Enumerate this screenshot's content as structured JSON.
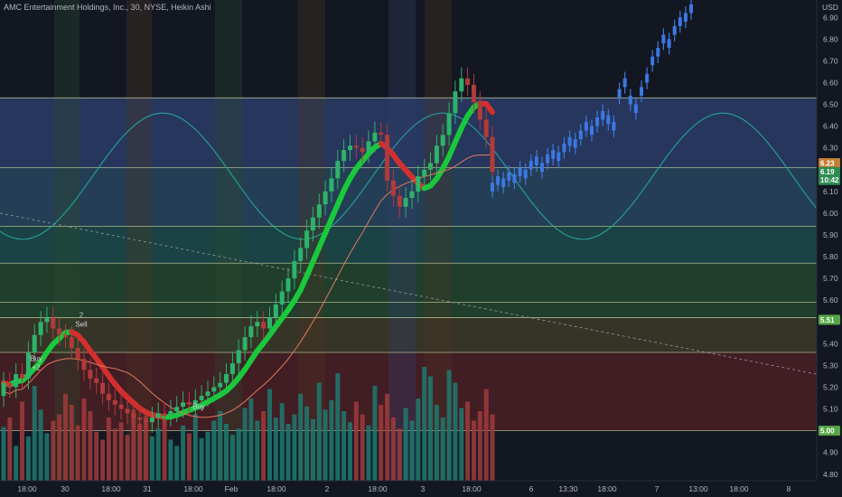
{
  "header": {
    "title": "AMC Entertainment Holdings, Inc., 30, NYSE, Heikin Ashi",
    "currency": "USD"
  },
  "colors": {
    "background": "#131722",
    "up": "#2db36a",
    "down": "#b33a3a",
    "forecast": "#3d78e3",
    "ribbon_up": "#19c93b",
    "ribbon_down": "#d32f2f",
    "sine": "#26a69a",
    "level_line": "#c9d7a6",
    "badge_price": "#c47f33",
    "badge_last": "#2e8b4f",
    "badge_level": "#56a646"
  },
  "chart_data": {
    "type": "candlestick",
    "symbol": "AMC Entertainment Holdings, Inc.",
    "interval": "30",
    "exchange": "NYSE",
    "style": "Heikin Ashi",
    "y_axis": {
      "unit": "USD",
      "ylim": [
        4.77,
        6.98
      ],
      "ticks": [
        "4.80",
        "4.90",
        "5.00",
        "5.10",
        "5.20",
        "5.30",
        "5.40",
        "5.50",
        "5.60",
        "5.70",
        "5.80",
        "5.90",
        "6.00",
        "6.10",
        "6.20",
        "6.30",
        "6.40",
        "6.50",
        "6.60",
        "6.70",
        "6.80",
        "6.90"
      ]
    },
    "x_axis": {
      "labels": [
        "18:00",
        "30",
        "18:00",
        "31",
        "18:00",
        "Feb",
        "18:00",
        "2",
        "18:00",
        "3",
        "18:00",
        "6",
        "13:30",
        "18:00",
        "7",
        "13:00",
        "18:00",
        "8"
      ]
    },
    "price_badges": [
      {
        "label": "6.23",
        "value": 6.23
      },
      {
        "label": "6.19",
        "value": 6.19,
        "sub": "10:42"
      },
      {
        "label": "5.51",
        "value": 5.51
      },
      {
        "label": "5.00",
        "value": 5.0
      }
    ],
    "levels": [
      6.53,
      6.21,
      5.94,
      5.77,
      5.59,
      5.52,
      5.36,
      5.0
    ],
    "zones": [
      {
        "from": 6.21,
        "to": 6.53,
        "color": "#2a3c66"
      },
      {
        "from": 5.94,
        "to": 6.21,
        "color": "#28455e"
      },
      {
        "from": 5.77,
        "to": 5.94,
        "color": "#1d4a4a"
      },
      {
        "from": 5.52,
        "to": 5.77,
        "color": "#23452e"
      },
      {
        "from": 5.36,
        "to": 5.52,
        "color": "#3d3a28"
      },
      {
        "from": 5.0,
        "to": 5.36,
        "color": "#4a1f24"
      }
    ],
    "candles": {
      "opens": [
        5.16,
        5.22,
        5.2,
        5.26,
        5.24,
        5.36,
        5.44,
        5.5,
        5.52,
        5.47,
        5.44,
        5.43,
        5.38,
        5.33,
        5.28,
        5.24,
        5.22,
        5.17,
        5.14,
        5.12,
        5.1,
        5.08,
        5.06,
        5.05,
        5.04,
        5.06,
        5.08,
        5.07,
        5.09,
        5.11,
        5.13,
        5.12,
        5.14,
        5.16,
        5.18,
        5.2,
        5.22,
        5.26,
        5.31,
        5.37,
        5.43,
        5.48,
        5.5,
        5.47,
        5.52,
        5.58,
        5.64,
        5.7,
        5.78,
        5.84,
        5.92,
        5.98,
        6.04,
        6.1,
        6.16,
        6.24,
        6.29,
        6.31,
        6.3,
        6.28,
        6.33,
        6.37,
        6.36,
        6.15,
        6.08,
        6.03,
        6.07,
        6.1,
        6.17,
        6.2,
        6.23,
        6.31,
        6.36,
        6.46,
        6.56,
        6.62,
        6.59,
        6.51,
        6.43,
        6.35
      ],
      "closes": [
        5.22,
        5.2,
        5.26,
        5.24,
        5.36,
        5.44,
        5.5,
        5.52,
        5.47,
        5.44,
        5.43,
        5.38,
        5.33,
        5.28,
        5.24,
        5.22,
        5.17,
        5.14,
        5.12,
        5.1,
        5.08,
        5.06,
        5.05,
        5.04,
        5.06,
        5.08,
        5.07,
        5.09,
        5.11,
        5.13,
        5.12,
        5.14,
        5.16,
        5.18,
        5.2,
        5.22,
        5.26,
        5.31,
        5.37,
        5.43,
        5.48,
        5.5,
        5.47,
        5.52,
        5.58,
        5.64,
        5.7,
        5.78,
        5.84,
        5.92,
        5.98,
        6.04,
        6.1,
        6.16,
        6.24,
        6.29,
        6.31,
        6.3,
        6.28,
        6.33,
        6.37,
        6.36,
        6.15,
        6.08,
        6.03,
        6.07,
        6.1,
        6.17,
        6.2,
        6.23,
        6.31,
        6.36,
        6.46,
        6.56,
        6.62,
        6.59,
        6.51,
        6.43,
        6.35,
        6.19
      ]
    },
    "forecast": [
      6.12,
      6.15,
      6.14,
      6.17,
      6.16,
      6.19,
      6.18,
      6.22,
      6.24,
      6.21,
      6.25,
      6.27,
      6.26,
      6.3,
      6.33,
      6.32,
      6.36,
      6.4,
      6.38,
      6.42,
      6.45,
      6.43,
      6.4,
      6.55,
      6.6,
      6.52,
      6.48,
      6.56,
      6.62,
      6.7,
      6.74,
      6.8,
      6.78,
      6.84,
      6.88,
      6.9,
      6.94
    ],
    "volume_bars": [
      34,
      40,
      22,
      50,
      28,
      60,
      45,
      30,
      38,
      42,
      55,
      48,
      35,
      52,
      44,
      31,
      26,
      40,
      33,
      37,
      29,
      45,
      36,
      41,
      28,
      33,
      39,
      26,
      22,
      35,
      30,
      42,
      27,
      31,
      38,
      44,
      36,
      29,
      33,
      46,
      52,
      38,
      44,
      58,
      40,
      49,
      36,
      42,
      55,
      47,
      39,
      62,
      45,
      51,
      68,
      44,
      37,
      50,
      42,
      35,
      60,
      48,
      55,
      40,
      33,
      46,
      38,
      52,
      72,
      66,
      48,
      40,
      70,
      62,
      46,
      50,
      38,
      44,
      58,
      42
    ],
    "volume_scale_max": 80,
    "signals": [
      {
        "label": "Buy",
        "sub": "+2"
      },
      {
        "label": "2",
        "sub": "Sell"
      },
      {
        "label": "Buy",
        "sub": ""
      }
    ]
  }
}
